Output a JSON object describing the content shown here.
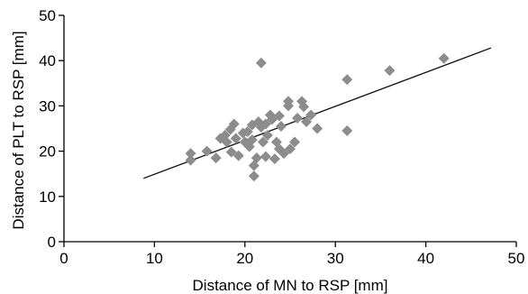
{
  "chart_data": {
    "type": "scatter",
    "title": "",
    "xlabel": "Distance of MN to RSP [mm]",
    "ylabel": "Distance of PLT to RSP [mm]",
    "xlim": [
      0,
      50
    ],
    "ylim": [
      0,
      50
    ],
    "xticks": [
      0,
      10,
      20,
      30,
      40,
      50
    ],
    "yticks": [
      0,
      10,
      20,
      30,
      40,
      50
    ],
    "grid": false,
    "marker": "diamond",
    "colors": {
      "points": "#8c8c8c",
      "line": "#1a1a1a",
      "axes": "#000000"
    },
    "series": [
      {
        "points": [
          [
            14.0,
            18.0
          ],
          [
            14.0,
            19.5
          ],
          [
            15.8,
            20.0
          ],
          [
            16.8,
            18.5
          ],
          [
            17.3,
            22.8
          ],
          [
            17.8,
            23.5
          ],
          [
            18.0,
            22.0
          ],
          [
            18.4,
            24.8
          ],
          [
            18.5,
            19.8
          ],
          [
            18.8,
            26.0
          ],
          [
            19.0,
            22.8
          ],
          [
            19.3,
            19.0
          ],
          [
            19.8,
            24.0
          ],
          [
            20.0,
            22.0
          ],
          [
            20.3,
            24.3
          ],
          [
            20.5,
            21.0
          ],
          [
            20.8,
            25.8
          ],
          [
            20.8,
            22.5
          ],
          [
            21.0,
            16.8
          ],
          [
            21.0,
            14.5
          ],
          [
            21.3,
            18.5
          ],
          [
            21.5,
            26.5
          ],
          [
            21.8,
            39.5
          ],
          [
            21.8,
            25.3
          ],
          [
            22.0,
            22.0
          ],
          [
            22.3,
            26.0
          ],
          [
            22.3,
            18.8
          ],
          [
            22.5,
            23.5
          ],
          [
            22.8,
            28.0
          ],
          [
            23.0,
            27.0
          ],
          [
            23.3,
            18.3
          ],
          [
            23.5,
            22.0
          ],
          [
            23.8,
            27.8
          ],
          [
            23.8,
            20.5
          ],
          [
            24.0,
            25.5
          ],
          [
            24.3,
            19.5
          ],
          [
            24.8,
            31.0
          ],
          [
            24.8,
            30.0
          ],
          [
            25.0,
            20.5
          ],
          [
            25.5,
            22.0
          ],
          [
            25.8,
            27.3
          ],
          [
            26.3,
            31.0
          ],
          [
            26.5,
            29.8
          ],
          [
            26.8,
            26.5
          ],
          [
            27.3,
            28.0
          ],
          [
            28.0,
            25.0
          ],
          [
            31.3,
            35.8
          ],
          [
            31.3,
            24.5
          ],
          [
            36.0,
            37.8
          ],
          [
            42.0,
            40.5
          ]
        ]
      }
    ],
    "trendline": {
      "x": [
        8.8,
        47.2
      ],
      "y": [
        14.0,
        42.8
      ]
    }
  }
}
